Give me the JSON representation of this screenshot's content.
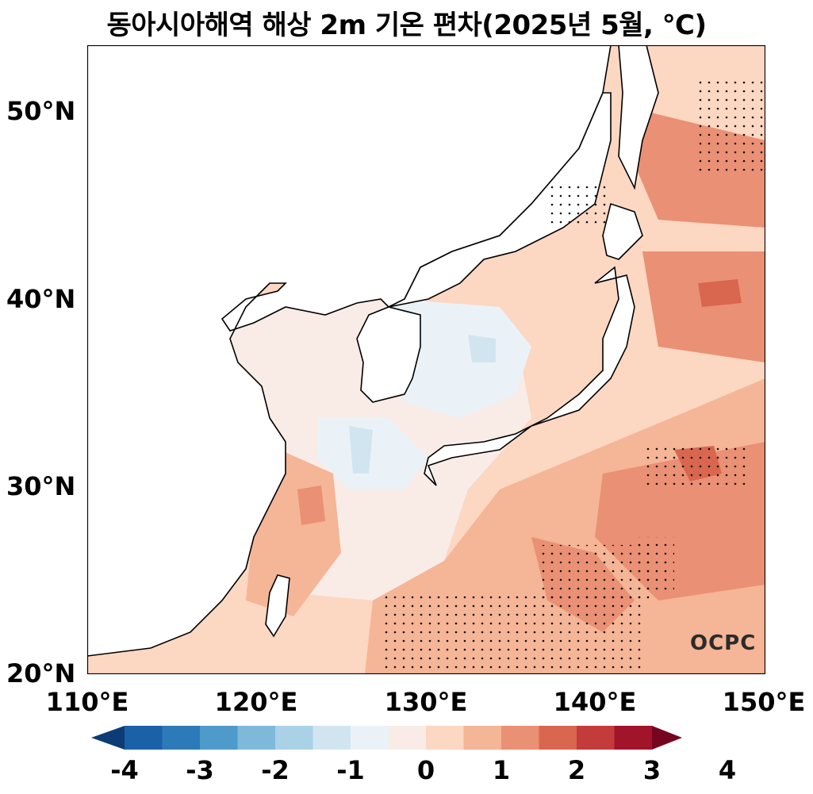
{
  "title": "동아시아해역 해상 2m 기온 편차(2025년 5월, ℃)",
  "map": {
    "region": "East Asian seas",
    "lon_range": [
      110,
      150
    ],
    "lat_range": [
      20,
      53.5
    ],
    "y_ticks": [
      "50°N",
      "40°N",
      "30°N",
      "20°N"
    ],
    "x_ticks": [
      "110°E",
      "120°E",
      "130°E",
      "140°E",
      "150°E"
    ],
    "stippling": "statistically significant areas marked with dots"
  },
  "colorbar": {
    "ticks": [
      "-4",
      "-3",
      "-2",
      "-1",
      "0",
      "1",
      "2",
      "3",
      "4"
    ],
    "colors": [
      "#0b3c75",
      "#1b61a8",
      "#2d7ab8",
      "#4d9acb",
      "#7fb9da",
      "#aad1e6",
      "#d1e5f0",
      "#ebf2f7",
      "#f9ece6",
      "#fcd7c2",
      "#f5b597",
      "#ea9074",
      "#d9664f",
      "#c43b3b",
      "#a11429",
      "#760620"
    ]
  },
  "logo": "OCPC"
}
